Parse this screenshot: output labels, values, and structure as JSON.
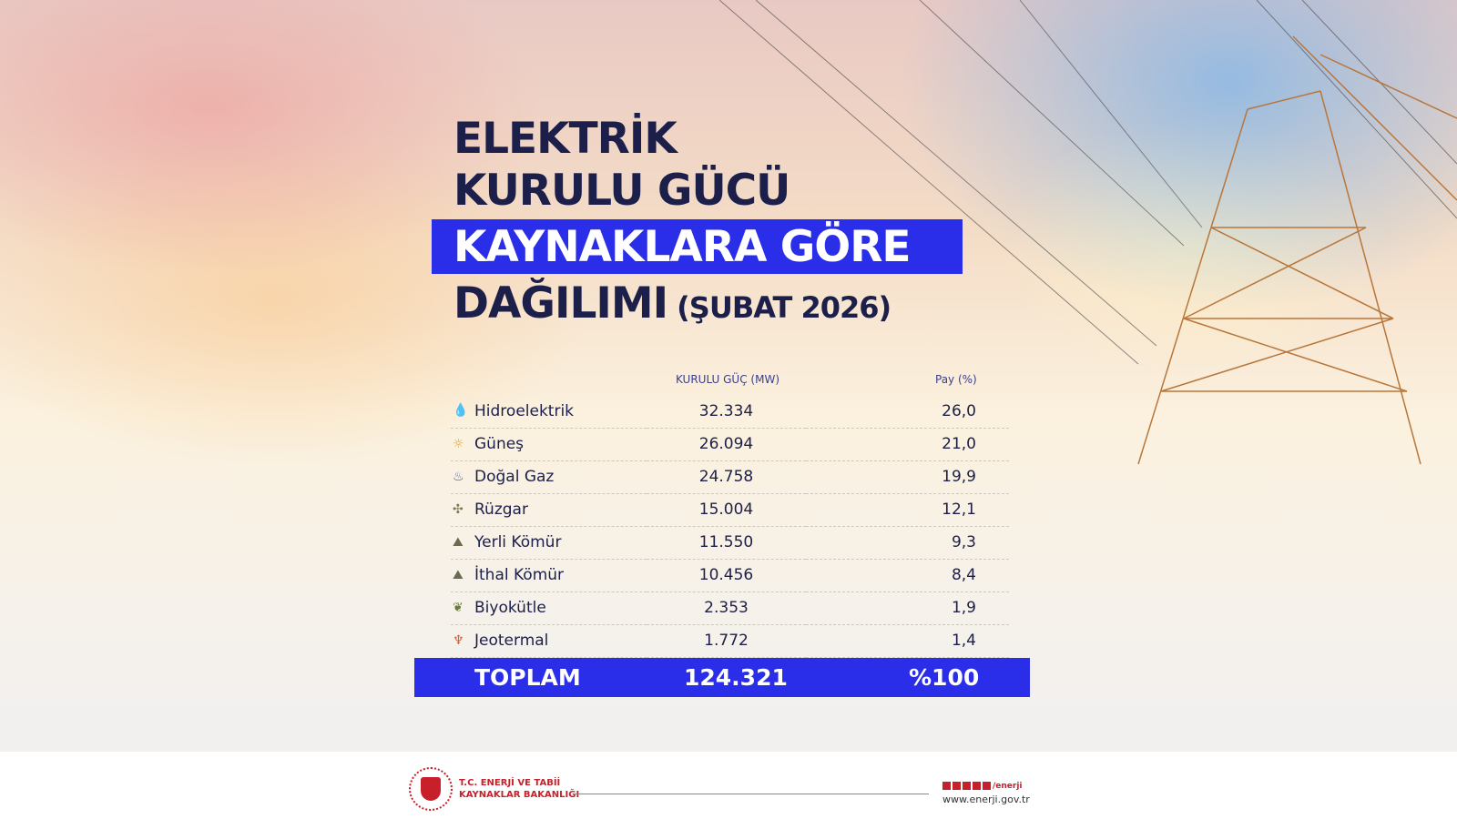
{
  "title": {
    "line1": "ELEKTRİK",
    "line2": "KURULU GÜCÜ",
    "line3": "KAYNAKLARA GÖRE",
    "line4": "DAĞILIMI",
    "period": "(ŞUBAT 2026)"
  },
  "chart_data": {
    "type": "table",
    "columns": [
      "",
      "KURULU GÜÇ (MW)",
      "Pay (%)"
    ],
    "rows": [
      {
        "name": "Hidroelektrik",
        "icon": "water-drop-icon",
        "mw": "32.334",
        "pct": "26,0"
      },
      {
        "name": "Güneş",
        "icon": "sun-icon",
        "mw": "26.094",
        "pct": "21,0"
      },
      {
        "name": "Doğal Gaz",
        "icon": "gas-flame-icon",
        "mw": "24.758",
        "pct": "19,9"
      },
      {
        "name": "Rüzgar",
        "icon": "wind-turbine-icon",
        "mw": "15.004",
        "pct": "12,1"
      },
      {
        "name": "Yerli Kömür",
        "icon": "coal-icon",
        "mw": "11.550",
        "pct": "9,3"
      },
      {
        "name": "İthal Kömür",
        "icon": "coal-icon",
        "mw": "10.456",
        "pct": "8,4"
      },
      {
        "name": "Biyokütle",
        "icon": "biomass-icon",
        "mw": "2.353",
        "pct": "1,9"
      },
      {
        "name": "Jeotermal",
        "icon": "geothermal-icon",
        "mw": "1.772",
        "pct": "1,4"
      }
    ],
    "total": {
      "label": "TOPLAM",
      "mw": "124.321",
      "pct": "%100"
    }
  },
  "colors": {
    "accent": "#2a2ee8",
    "text": "#1c1f4a",
    "brand": "#c8202a"
  },
  "footer": {
    "ministry_line1": "T.C. ENERJİ VE TABİİ",
    "ministry_line2": "KAYNAKLAR BAKANLIĞI",
    "social_handle": "/enerji",
    "url": "www.enerji.gov.tr"
  }
}
